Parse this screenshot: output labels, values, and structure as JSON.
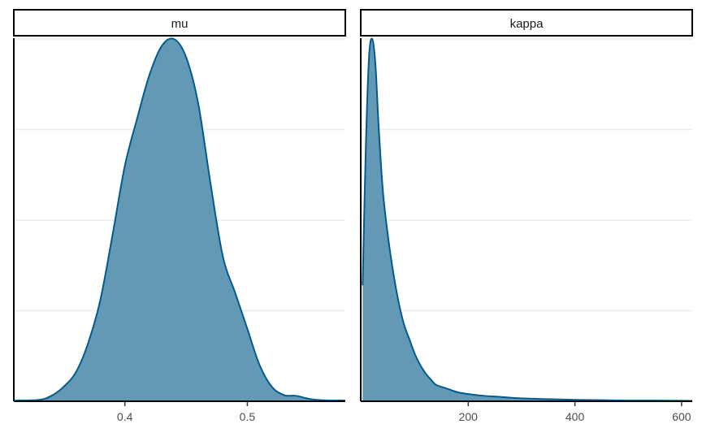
{
  "chart_data": [
    {
      "type": "area",
      "title": "mu",
      "xlabel": "",
      "ylabel": "",
      "xlim": [
        0.31,
        0.58
      ],
      "ylim": [
        0,
        1
      ],
      "x_ticks": [
        0.4,
        0.5
      ],
      "x_tick_labels": [
        "0.4",
        "0.5"
      ],
      "grid": "horizontal",
      "series": [
        {
          "x": [
            0.31,
            0.33,
            0.34,
            0.35,
            0.36,
            0.37,
            0.38,
            0.39,
            0.4,
            0.41,
            0.42,
            0.43,
            0.44,
            0.45,
            0.46,
            0.47,
            0.48,
            0.49,
            0.5,
            0.51,
            0.52,
            0.53,
            0.54,
            0.55,
            0.56,
            0.58
          ],
          "y": [
            0.002,
            0.004,
            0.015,
            0.04,
            0.08,
            0.16,
            0.28,
            0.46,
            0.65,
            0.78,
            0.9,
            0.98,
            1.0,
            0.95,
            0.82,
            0.6,
            0.4,
            0.3,
            0.2,
            0.1,
            0.04,
            0.017,
            0.015,
            0.007,
            0.003,
            0.002
          ]
        }
      ],
      "colors": {
        "fill": "#6499b5",
        "line": "#005b8e"
      }
    },
    {
      "type": "area",
      "title": "kappa",
      "xlabel": "",
      "ylabel": "",
      "xlim": [
        0,
        620
      ],
      "ylim": [
        0,
        1
      ],
      "x_ticks": [
        200,
        400,
        600
      ],
      "x_tick_labels": [
        "200",
        "400",
        "600"
      ],
      "grid": "horizontal",
      "series": [
        {
          "x": [
            2,
            8,
            14,
            20,
            26,
            32,
            40,
            50,
            60,
            70,
            80,
            90,
            100,
            110,
            120,
            130,
            140,
            160,
            180,
            200,
            230,
            260,
            300,
            350,
            400,
            450,
            500,
            550,
            620
          ],
          "y": [
            0.32,
            0.7,
            0.95,
            1.0,
            0.93,
            0.76,
            0.58,
            0.45,
            0.35,
            0.27,
            0.21,
            0.17,
            0.13,
            0.1,
            0.077,
            0.06,
            0.045,
            0.035,
            0.025,
            0.02,
            0.015,
            0.012,
            0.008,
            0.006,
            0.004,
            0.003,
            0.002,
            0.002,
            0.001
          ]
        }
      ],
      "colors": {
        "fill": "#6499b5",
        "line": "#005b8e"
      }
    }
  ]
}
